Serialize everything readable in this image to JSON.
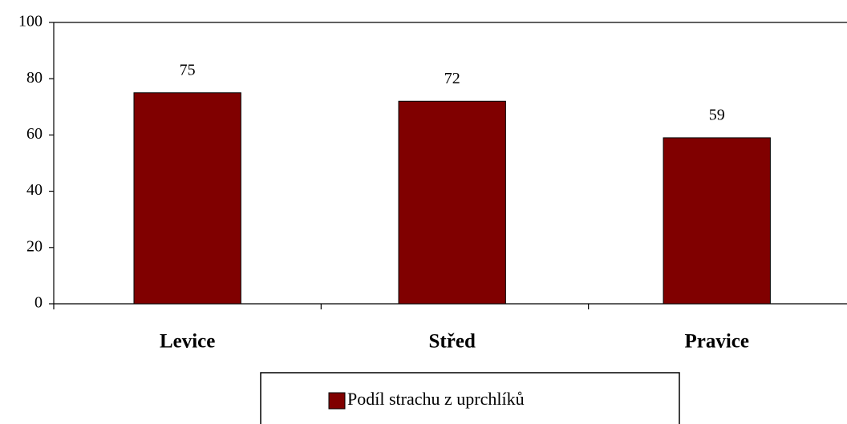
{
  "chart_data": {
    "type": "bar",
    "categories": [
      "Levice",
      "Střed",
      "Pravice"
    ],
    "series": [
      {
        "name": "Podíl strachu z uprchlíků",
        "color": "#800000",
        "values": [
          75,
          72,
          59
        ]
      }
    ],
    "ylim": [
      0,
      100
    ],
    "yticks": [
      0,
      20,
      40,
      60,
      80,
      100
    ],
    "grid": false,
    "legend": "bottom"
  }
}
